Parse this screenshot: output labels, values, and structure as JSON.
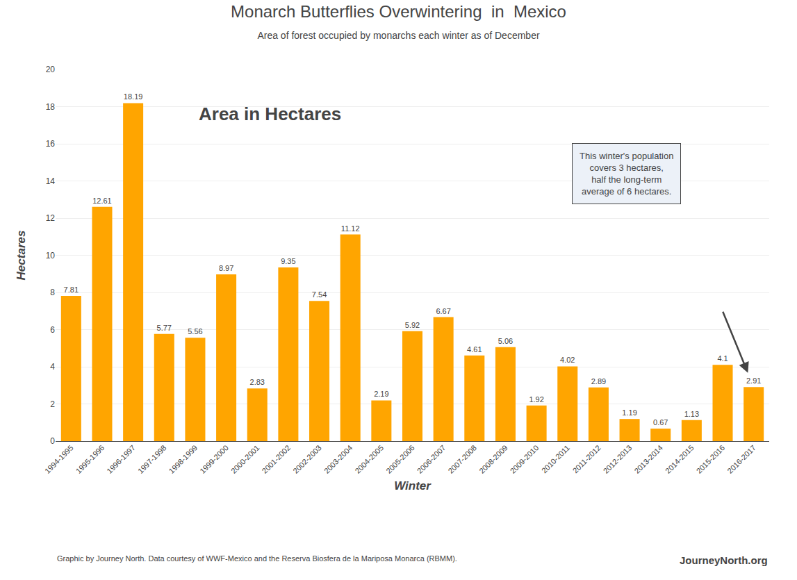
{
  "chart_data": {
    "type": "bar",
    "title": "Monarch Butterflies Overwintering  in  Mexico",
    "subtitle": "Area of forest occupied by monarchs each winter as of December",
    "xlabel": "Winter",
    "ylabel": "Hectares",
    "categories": [
      "1994-1995",
      "1995-1996",
      "1996-1997",
      "1997-1998",
      "1998-1999",
      "1999-2000",
      "2000-2001",
      "2001-2002",
      "2002-2003",
      "2003-2004",
      "2004-2005",
      "2005-2006",
      "2006-2007",
      "2007-2008",
      "2008-2009",
      "2009-2010",
      "2010-2011",
      "2011-2012",
      "2012-2013",
      "2013-2014",
      "2014-2015",
      "2015-2016",
      "2016-2017"
    ],
    "values": [
      7.81,
      12.61,
      18.19,
      5.77,
      5.56,
      8.97,
      2.83,
      9.35,
      7.54,
      11.12,
      2.19,
      5.92,
      6.67,
      4.61,
      5.06,
      1.92,
      4.02,
      2.89,
      1.19,
      0.67,
      1.13,
      4.1,
      2.91
    ],
    "color": "#FFA500",
    "ylim": [
      0,
      20
    ],
    "yticks": [
      0,
      2,
      4,
      6,
      8,
      10,
      12,
      14,
      16,
      18,
      20
    ],
    "grid": true,
    "data_labels": true,
    "annotations": [
      "Area in Hectares",
      "This winter's population\ncovers 3 hectares,\nhalf the long-term\naverage of 6 hectares."
    ],
    "footer": "Graphic by Journey North. Data courtesy of WWF-Mexico and the Reserva Biosfera de la Mariposa Monarca (RBMM).",
    "logo": "JourneyNorth.org"
  }
}
